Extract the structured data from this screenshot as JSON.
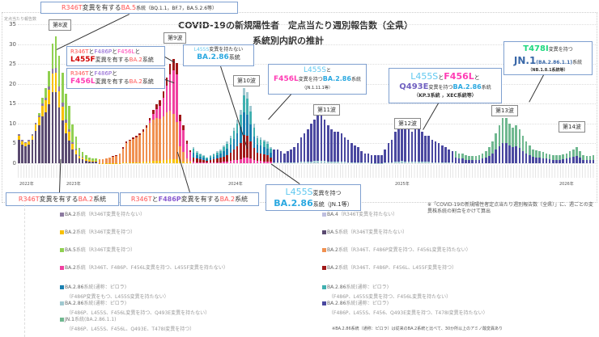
{
  "chart_data": {
    "type": "bar",
    "stacked": true,
    "title": "COVID-19の新規陽性者　定点当たり週別報告数（全県）",
    "subtitle": "系統別内訳の推計",
    "ylabel": "定点当たり報告数",
    "xlabel": "",
    "ylim": [
      0,
      35
    ],
    "yticks": [
      0,
      5,
      10,
      15,
      20,
      25,
      30,
      35
    ],
    "grid": true,
    "x_year_labels": [
      "2022年",
      "2023年",
      "2024年",
      "2025年",
      "2026年"
    ],
    "waves": [
      "第8波",
      "第9波",
      "第10波",
      "第11波",
      "第12波",
      "第13波",
      "第14波"
    ],
    "series": [
      {
        "name": "BA.2系統（R346T変異を持たない）",
        "color": "#8c7aa0"
      },
      {
        "name": "BA.2系統（R346T変異を持つ）",
        "color": "#f7c000"
      },
      {
        "name": "BA.5系統（R346T変異を持つ）",
        "color": "#90d050"
      },
      {
        "name": "BA.2系統（R346T、F486P、F456L変異を持つ、L455F変異を持たない）",
        "color": "#f040a0"
      },
      {
        "name": "BA.2.86系統(通称：ピロラ)（F486P変異をもつ、L455S変異を持たない）",
        "color": "#1a80b0"
      },
      {
        "name": "BA.2.86系統(通称：ピロラ)（F486P、L455S、F456L変異を持つ、Q493E変異を持たない）",
        "color": "#a0c8d0"
      },
      {
        "name": "JN.1系統(BA.2.86.1.1)（F486P、L455S、F456L、Q493E、T478I変異を持つ）",
        "color": "#70b890"
      },
      {
        "name": "BA.4（R346T変異を持たない）",
        "color": "#c0c0e0"
      },
      {
        "name": "BA.5系統（R346T変異を持たない）",
        "color": "#5a4a70"
      },
      {
        "name": "BA.2系統（R346T、F486P変異を持つ、F456L変異を持たない）",
        "color": "#f09050"
      },
      {
        "name": "BA.2系統（R346T、F486P、F456L、L455F変異を持つ）",
        "color": "#a01818"
      },
      {
        "name": "BA.2.86系統(通称：ピロラ)（F486P、L455S変異を持つ、F456L変異を持たない）",
        "color": "#40b0b0"
      },
      {
        "name": "BA.2.86系統(通称：ピロラ)（F486P、L455S、F456、Q493E変異を持つ、T478I変異を持たない）",
        "color": "#4a48a0"
      }
    ],
    "totals_by_week_estimate": [
      7.5,
      6,
      5.5,
      6,
      7.5,
      10.5,
      13,
      17,
      19.5,
      24,
      31,
      33,
      28,
      23.5,
      18,
      15,
      10,
      7,
      4,
      3,
      2,
      1.5,
      1.3,
      1.2,
      1,
      1,
      1.2,
      1.5,
      1.8,
      2,
      2.5,
      4,
      5.5,
      6,
      6.5,
      7,
      7.5,
      8.5,
      9.5,
      11.5,
      13.5,
      15,
      16,
      18.5,
      22,
      25.5,
      27,
      26,
      12.5,
      10,
      6,
      3.5,
      4,
      3,
      2.5,
      2,
      1.5,
      2,
      2.5,
      3,
      3.5,
      4.5,
      5.5,
      7,
      9,
      11,
      13.5,
      19,
      18,
      14.5,
      10,
      7,
      6.5,
      6,
      5.5,
      4,
      3.5,
      3.5,
      3,
      2.5,
      3,
      3.5,
      4,
      5,
      6.5,
      7.5,
      8.5,
      10,
      11,
      12.5,
      12.5,
      11,
      9.5,
      8.5,
      8,
      8,
      7.5,
      6.5,
      6,
      5,
      4.5,
      4,
      3,
      2.5,
      2.5,
      2,
      2,
      2,
      2,
      3.5,
      5,
      6,
      8,
      9.5,
      11,
      9.5,
      9,
      8,
      8.5,
      9,
      8,
      7,
      7,
      6,
      5.5,
      5,
      4.5,
      4,
      3.5,
      3,
      3,
      2.5,
      2.5,
      2,
      1.8,
      1.8,
      1.8,
      2,
      2.5,
      3,
      4,
      5.5,
      7.5,
      9.5,
      11.5,
      11.5,
      10,
      9,
      9.5,
      8.5,
      7,
      5.5,
      4.5,
      3.5,
      3.2,
      3,
      2.8,
      2.5,
      2.2,
      2,
      2,
      2,
      2.2,
      2.5,
      3,
      3.5,
      4,
      3,
      2,
      1.8,
      1.8,
      2
    ]
  },
  "callouts": {
    "ba5_r346t": {
      "p1": "R346T",
      "p2": "変異を有する",
      "p3": "BA.5",
      "p4": "系統（BQ.1.1，BF.7，BA.5.2.6等）"
    },
    "l455f": {
      "l1a": "R346T",
      "l1b": "と",
      "l1c": "F486P",
      "l1d": "と",
      "l1e": "F456L",
      "l1f": "と",
      "l2a": "L455F",
      "l2b": "変異を有する",
      "l2c": "BA.2",
      "l2d": "系統"
    },
    "f456l": {
      "l1a": "R346T",
      "l1b": "と",
      "l1c": "F486P",
      "l1d": "と",
      "l2a": "F456L",
      "l2b": "変異を有する",
      "l2c": "BA.2",
      "l2d": "系統"
    },
    "ba286_no_l455s": {
      "l1a": "L455S",
      "l1b": "変異を持たない",
      "l2a": "BA.2.86",
      "l2b": "系統"
    },
    "l455s_f456l": {
      "l1a": "L455S",
      "l1b": "と",
      "l2a": "F456L",
      "l2b": "変異を持つ",
      "l2c": "BA.2.86",
      "l2d": "系統",
      "l3": "（JN.1.11.1等）"
    },
    "q493e": {
      "l1a": "L455S",
      "l1b": "と",
      "l1c": "F456L",
      "l1d": "と",
      "l2a": "Q493E",
      "l2b": "変異を持つ",
      "l2c": "BA.2.86",
      "l2d": "系統",
      "l3": "（KP.3系統 ，XEC系統等）"
    },
    "t478i": {
      "l1a": "T478I",
      "l1b": "変異を持つ",
      "l2a": "JN.1",
      "l2b": "(BA.2.86.1.1)",
      "l2c": "系統",
      "l3": "（NB.1.8.1系統等）"
    },
    "ba2_r346t": {
      "p1": "R346T",
      "p2": "変異を有する",
      "p3": "BA.2",
      "p4": "系統"
    },
    "ba2_f486p": {
      "p1": "R346T",
      "p2": "と",
      "p3": "F486P",
      "p4": "変異を有する",
      "p5": "BA.2",
      "p6": "系統"
    },
    "l455s_jn1": {
      "l1a": "L455S",
      "l1b": "変異を持つ",
      "l2a": "BA.2.86",
      "l2b": "系統（JN.1等）"
    }
  },
  "legend": {
    "left": [
      {
        "main": "BA.2",
        "rest": "系統（R346T変異を持たない）",
        "color": "#8c7aa0"
      },
      {
        "main": "BA.2",
        "rest": "系統（R346T変異を持つ）",
        "color": "#f7c000"
      },
      {
        "main": "BA.5",
        "rest": "系統（R346T変異を持つ）",
        "color": "#90d050"
      },
      {
        "main": "BA.2",
        "rest": "系統（R346T、F486P、F456L変異を持つ、L455F変異を持たない）",
        "color": "#f040a0"
      },
      {
        "main": "BA.2.86",
        "rest": "系統(通称：ピロラ)",
        "sub": "（F486P変異をもつ、L455S変異を持たない）",
        "color": "#1a80b0"
      },
      {
        "main": "BA.2.86",
        "rest": "系統(通称：ピロラ)",
        "sub": "（F486P、L455S、F456L変異を持つ、Q493E変異を持たない）",
        "color": "#a0c8d0"
      },
      {
        "main": "JN.1",
        "rest": "系統(BA.2.86.1.1)",
        "sub": "（F486P、L455S、F456L、Q493E、T478I変異を持つ）",
        "color": "#70b890"
      }
    ],
    "right": [
      {
        "main": "BA.4",
        "rest": "（R346T変異を持たない）",
        "color": "#c0c0e0"
      },
      {
        "main": "BA.5",
        "rest": "系統（R346T変異を持たない）",
        "color": "#5a4a70"
      },
      {
        "main": "BA.2",
        "rest": "系統（R346T、F486P変異を持つ、F456L変異を持たない）",
        "color": "#f09050"
      },
      {
        "main": "BA.2",
        "rest": "系統（R346T、F486P、F456L、L455F変異を持つ）",
        "color": "#a01818"
      },
      {
        "main": "BA.2.86",
        "rest": "系統(通称：ピロラ)",
        "sub": "（F486P、L455S変異を持つ、F456L変異を持たない）",
        "color": "#40b0b0"
      },
      {
        "main": "BA.2.86",
        "rest": "系統(通称：ピロラ)",
        "sub": "（F486P、L455S、F456、Q493E変異を持つ、T478I変異を持たない）",
        "color": "#4a48a0"
      }
    ]
  },
  "notes": {
    "method": "※「COVID-19の新規陽性者定点当たり週別報告数（全県）」に、週ごとの変異株系統の割合をかけて算出",
    "ba286": "※BA.2.86系統（通称：ピロラ）は従来のBA.2系統と比べて、30か所以上のアミノ酸変異あり"
  }
}
